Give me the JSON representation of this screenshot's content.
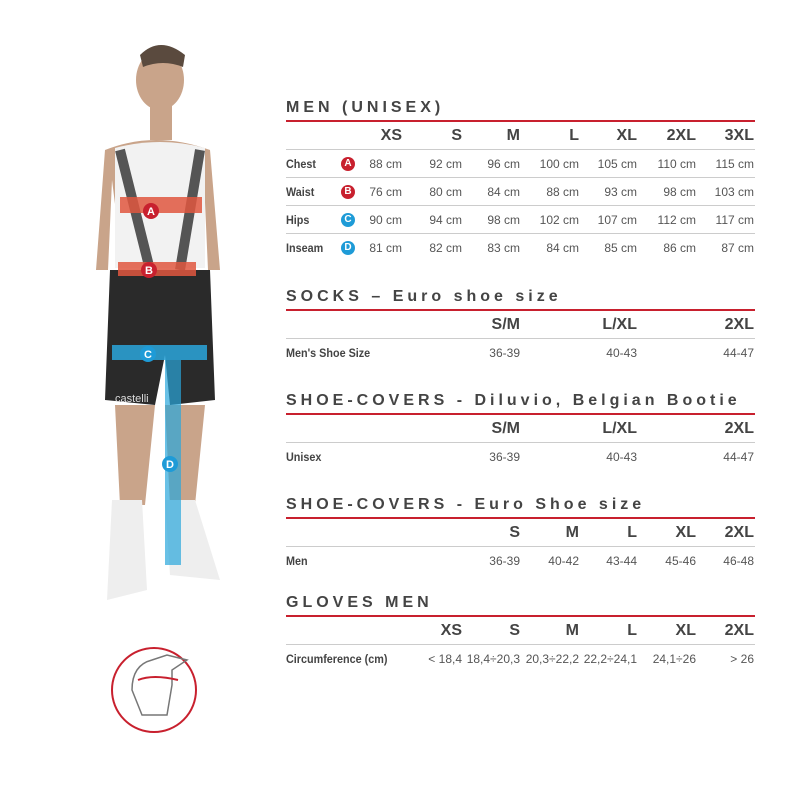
{
  "colors": {
    "accent_red": "#c8202e",
    "badge_red": "#c8202e",
    "badge_blue": "#1e9bd7",
    "band_red": "#e0573f",
    "band_blue": "#2aa6dc"
  },
  "figure": {
    "bands": [
      "A",
      "B",
      "C",
      "D"
    ],
    "jersey_brand": "castelli",
    "hand_icon": "hand-circumference-icon"
  },
  "men": {
    "title": "MEN (UNISEX)",
    "sizes": [
      "XS",
      "S",
      "M",
      "L",
      "XL",
      "2XL",
      "3XL"
    ],
    "rows": [
      {
        "label": "Chest",
        "badge": "A",
        "badge_color": "#c8202e",
        "values": [
          "88 cm",
          "92 cm",
          "96 cm",
          "100 cm",
          "105 cm",
          "110 cm",
          "115 cm"
        ]
      },
      {
        "label": "Waist",
        "badge": "B",
        "badge_color": "#c8202e",
        "values": [
          "76 cm",
          "80 cm",
          "84 cm",
          "88 cm",
          "93 cm",
          "98 cm",
          "103 cm"
        ]
      },
      {
        "label": "Hips",
        "badge": "C",
        "badge_color": "#1e9bd7",
        "values": [
          "90 cm",
          "94 cm",
          "98 cm",
          "102 cm",
          "107 cm",
          "112 cm",
          "117 cm"
        ]
      },
      {
        "label": "Inseam",
        "badge": "D",
        "badge_color": "#1e9bd7",
        "values": [
          "81 cm",
          "82 cm",
          "83 cm",
          "84 cm",
          "85 cm",
          "86 cm",
          "87 cm"
        ]
      }
    ]
  },
  "socks": {
    "title": "SOCKS – Euro shoe size",
    "sizes": [
      "S/M",
      "L/XL",
      "2XL"
    ],
    "rows": [
      {
        "label": "Men's Shoe Size",
        "values": [
          "36-39",
          "40-43",
          "44-47"
        ]
      }
    ]
  },
  "shoecovers": {
    "title": "SHOE-COVERS - Diluvio, Belgian Bootie",
    "sizes": [
      "S/M",
      "L/XL",
      "2XL"
    ],
    "rows": [
      {
        "label": "Unisex",
        "values": [
          "36-39",
          "40-43",
          "44-47"
        ]
      }
    ]
  },
  "shoecovers_euro": {
    "title": "SHOE-COVERS - Euro Shoe size",
    "sizes": [
      "S",
      "M",
      "L",
      "XL",
      "2XL"
    ],
    "rows": [
      {
        "label": "Men",
        "values": [
          "36-39",
          "40-42",
          "43-44",
          "45-46",
          "46-48"
        ]
      }
    ]
  },
  "gloves": {
    "title": "GLOVES MEN",
    "sizes": [
      "XS",
      "S",
      "M",
      "L",
      "XL",
      "2XL"
    ],
    "rows": [
      {
        "label": "Circumference (cm)",
        "values": [
          "< 18,4",
          "18,4÷20,3",
          "20,3÷22,2",
          "22,2÷24,1",
          "24,1÷26",
          "> 26"
        ]
      }
    ]
  }
}
